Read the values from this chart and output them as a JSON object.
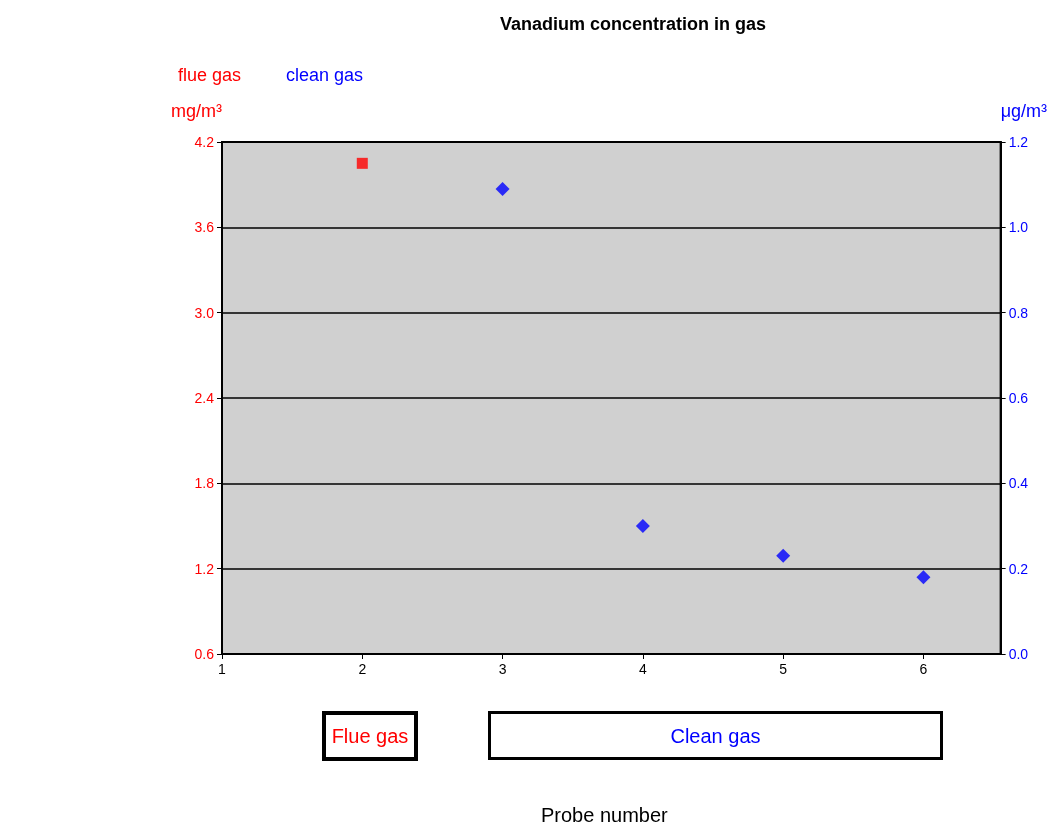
{
  "chart_data": {
    "type": "scatter",
    "title": "Vanadium concentration in gas",
    "ylabel": "mg/m³",
    "y2label": "μg/m³",
    "xlim": [
      1,
      6.55
    ],
    "xticks": [
      1,
      2,
      3,
      4,
      5,
      6
    ],
    "ylim": [
      0.6,
      4.2
    ],
    "yticks": [
      0.6,
      1.2,
      1.8,
      2.4,
      {
        "value": 3,
        "label": "3.0"
      },
      3.6,
      4.2
    ],
    "y2lim": [
      0,
      1.2
    ],
    "y2ticks": [
      {
        "value": 0,
        "label": "0.0"
      },
      0.2,
      0.4,
      0.6,
      0.8,
      {
        "value": 1,
        "label": "1.0"
      },
      1.2
    ],
    "series": [
      {
        "name": "flue gas",
        "color": "#ff0000",
        "marker": "square",
        "x": [
          2
        ],
        "values": [
          4.05
        ]
      },
      {
        "name": "clean gas",
        "color": "#0000ff",
        "marker": "diamond",
        "axis": "y2",
        "x": [
          3,
          4,
          5,
          6
        ],
        "values": [
          1.09,
          0.3,
          0.23,
          0.18
        ]
      }
    ],
    "annotations": [
      "Flue gas",
      "Clean gas",
      "Probe number"
    ],
    "grid": "y",
    "legend": "top left"
  }
}
